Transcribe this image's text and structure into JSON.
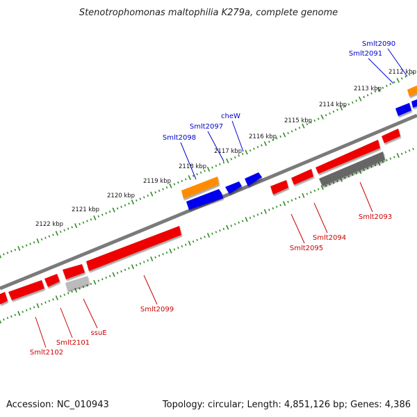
{
  "title": "Stenotrophomonas maltophilia K279a, complete genome",
  "footer": {
    "accession": "Accession: NC_010943",
    "summary": "Topology: circular; Length: 4,851,126 bp; Genes: 4,386"
  },
  "colors": {
    "backbone": "#7a7a7a",
    "tick": "#2e8b22",
    "forward_cds": "#0000ee",
    "reverse_cds": "#ee0000",
    "rna": "#ff8c00",
    "pseudo": "#666666",
    "other": "#bbbbbb",
    "forward_label": "#0000cc",
    "reverse_label": "#cc0000"
  },
  "scale_labels": [
    "2112 kbp",
    "2113 kbp",
    "2114 kbp",
    "2115 kbp",
    "2116 kbp",
    "2117 kbp",
    "2118 kbp",
    "2119 kbp",
    "2120 kbp",
    "2121 kbp",
    "2122 kbp"
  ],
  "forward_labels": [
    "Smlt2090",
    "Smlt2091",
    "cheW",
    "Smlt2097",
    "Smlt2098"
  ],
  "reverse_labels": [
    "Smlt2093",
    "Smlt2094",
    "Smlt2095",
    "Smlt2099",
    "ssuE",
    "Smlt2101",
    "Smlt2102"
  ]
}
